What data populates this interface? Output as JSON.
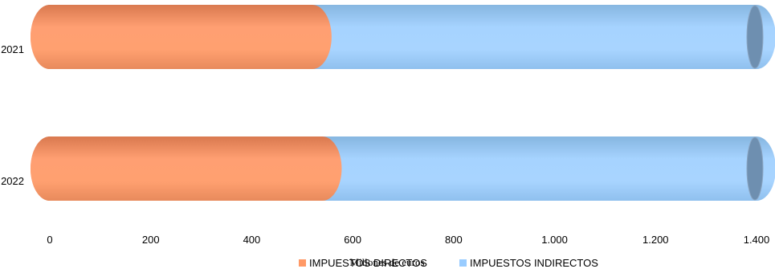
{
  "chart_data": {
    "type": "bar",
    "orientation": "horizontal",
    "stacked": true,
    "style": "3d-cylinder",
    "categories": [
      "2021",
      "2022"
    ],
    "series": [
      {
        "name": "IMPUESTOS DIRECTOS",
        "values": [
          520,
          540
        ],
        "color": "#FF9966"
      },
      {
        "name": "IMPUESTOS INDIRECTOS",
        "values": [
          880,
          860
        ],
        "color": "#99CCFF"
      }
    ],
    "xlabel": "Millones de euros",
    "ylabel": "",
    "xlim": [
      0,
      1400
    ],
    "xticks": [
      "0",
      "200",
      "400",
      "600",
      "800",
      "1.000",
      "1.200",
      "1.400"
    ],
    "xtick_values": [
      0,
      200,
      400,
      600,
      800,
      1000,
      1200,
      1400
    ],
    "grid": false,
    "legend_position": "bottom"
  }
}
